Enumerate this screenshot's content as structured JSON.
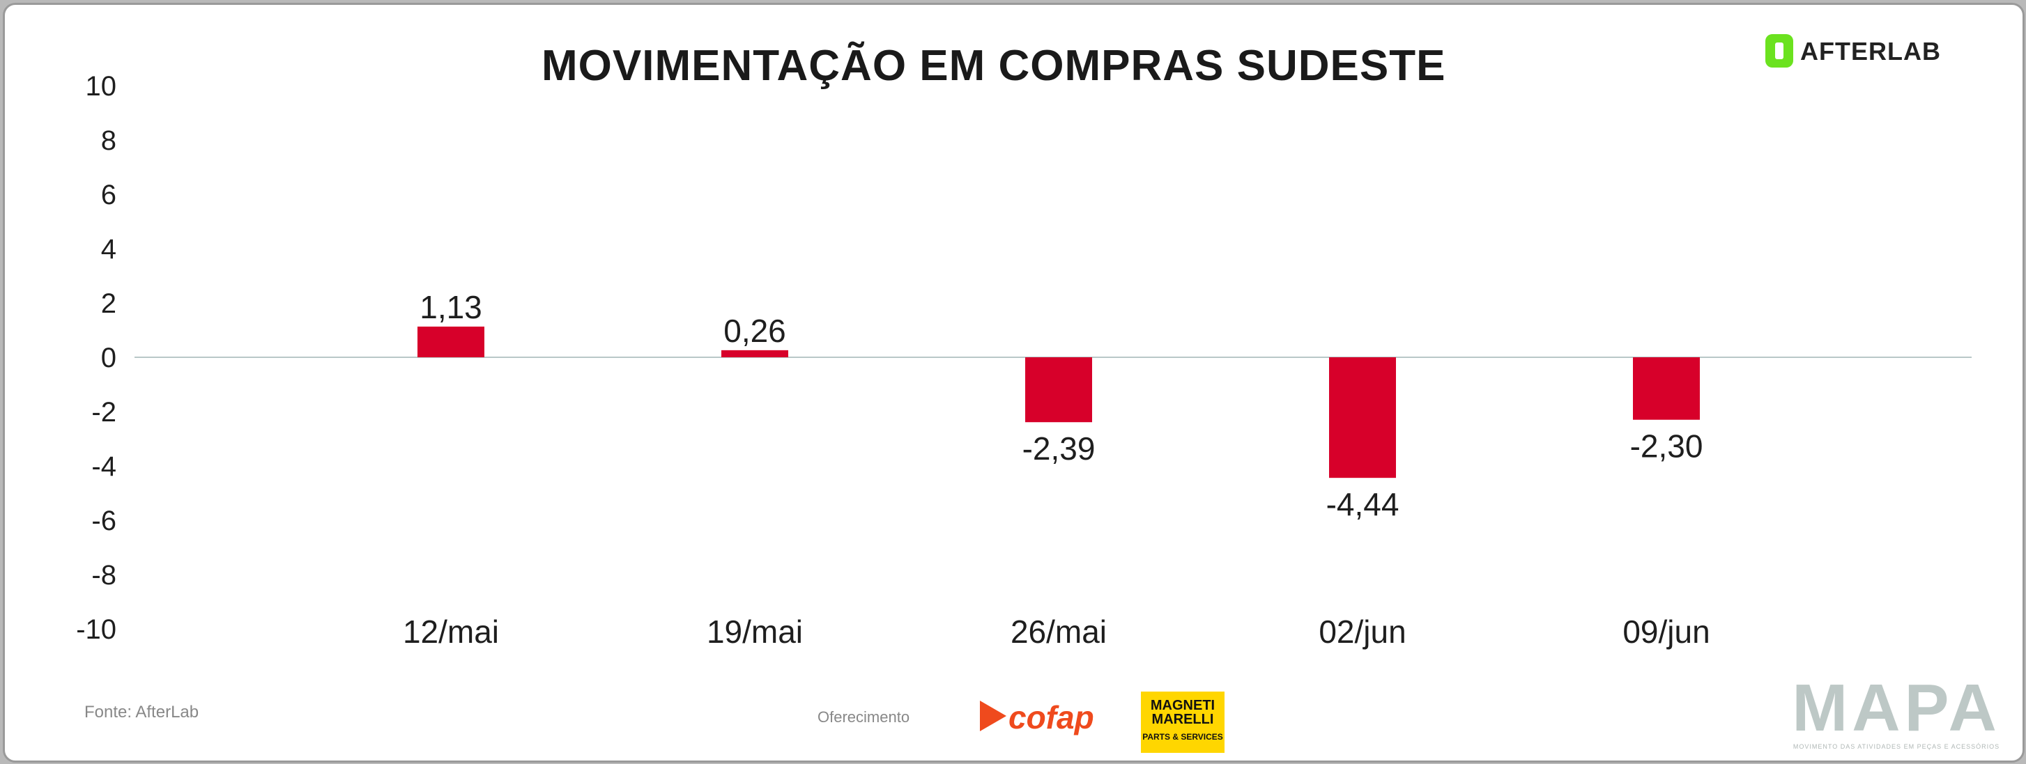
{
  "title": "MOVIMENTAÇÃO EM COMPRAS SUDESTE",
  "brand": {
    "name": "AFTERLAB",
    "color": "#6be21f"
  },
  "footer": {
    "source": "Fonte: AfterLab",
    "sponsor_label": "Oferecimento",
    "sponsor1": {
      "name": "cofap",
      "color": "#ef4a1d"
    },
    "sponsor2": {
      "name": "MAGNETI MARELLI",
      "subtitle": "PARTS & SERVICES",
      "color": "#ffd600"
    },
    "mapa": {
      "name": "MAPA",
      "tagline": "MOVIMENTO DAS ATIVIDADES EM PEÇAS E ACESSÓRIOS"
    }
  },
  "chart_data": {
    "type": "bar",
    "title": "MOVIMENTAÇÃO EM COMPRAS SUDESTE",
    "categories": [
      "12/mai",
      "19/mai",
      "26/mai",
      "02/jun",
      "09/jun"
    ],
    "values": [
      1.13,
      0.26,
      -2.39,
      -4.44,
      -2.3
    ],
    "value_labels": [
      "1,13",
      "0,26",
      "-2,39",
      "-4,44",
      "-2,30"
    ],
    "yticks": [
      10,
      8,
      6,
      4,
      2,
      0,
      -2,
      -4,
      -6,
      -8,
      -10
    ],
    "ylim": [
      -10,
      10
    ],
    "bar_color": "#d7002a",
    "grid": false,
    "legend": "none"
  }
}
